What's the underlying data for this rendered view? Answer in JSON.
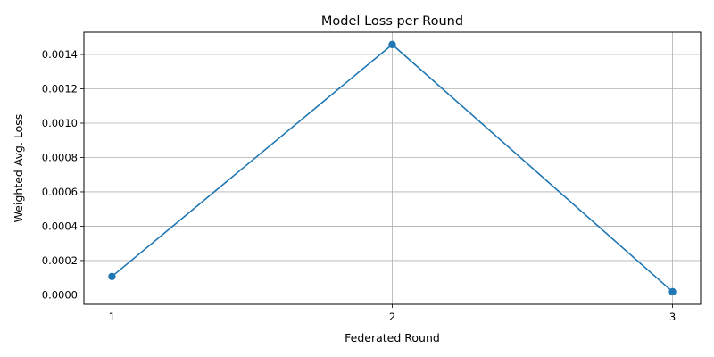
{
  "chart_data": {
    "type": "line",
    "title": "Model Loss per Round",
    "xlabel": "Federated Round",
    "ylabel": "Weighted Avg. Loss",
    "x": [
      1,
      2,
      3
    ],
    "x_tick_labels": [
      "1",
      "2",
      "3"
    ],
    "y_ticks": [
      0.0,
      0.0002,
      0.0004,
      0.0006,
      0.0008,
      0.001,
      0.0012,
      0.0014
    ],
    "y_tick_labels": [
      "0.0000",
      "0.0002",
      "0.0004",
      "0.0006",
      "0.0008",
      "0.0010",
      "0.0012",
      "0.0014"
    ],
    "xlim": [
      0.9,
      3.1
    ],
    "ylim": [
      -5.5e-05,
      0.00153
    ],
    "grid": true,
    "series": [
      {
        "values": [
          0.000107,
          0.001458,
          1.8e-05
        ],
        "color": "#1f77b4",
        "marker": "circle"
      }
    ]
  }
}
